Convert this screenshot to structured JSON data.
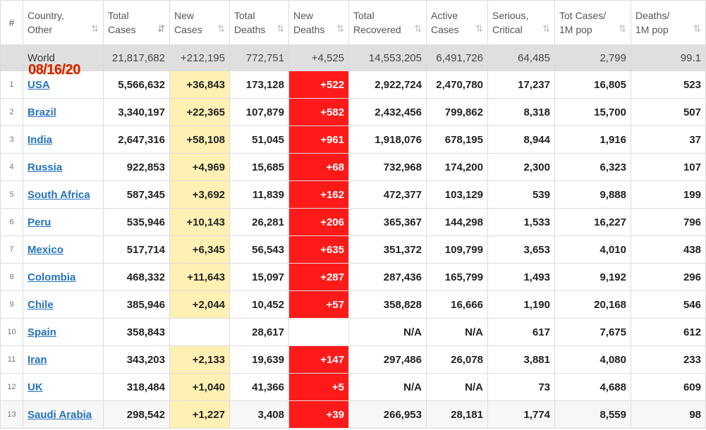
{
  "headers": {
    "index": "#",
    "country": [
      "Country,",
      "Other"
    ],
    "total_cases": [
      "Total",
      "Cases"
    ],
    "new_cases": [
      "New",
      "Cases"
    ],
    "total_deaths": [
      "Total",
      "Deaths"
    ],
    "new_deaths": [
      "New",
      "Deaths"
    ],
    "total_recovered": [
      "Total",
      "Recovered"
    ],
    "active_cases": [
      "Active",
      "Cases"
    ],
    "serious_critical": [
      "Serious,",
      "Critical"
    ],
    "cases_per_million": [
      "Tot Cases/",
      "1M pop"
    ],
    "deaths_per_million": [
      "Deaths/",
      "1M pop"
    ]
  },
  "sort_glyph": "⇅",
  "active_sort_glyph": "⇵",
  "date_stamp": "08/16/20",
  "world": {
    "country": "World",
    "total_cases": "21,817,682",
    "new_cases": "+212,195",
    "total_deaths": "772,751",
    "new_deaths": "+4,525",
    "total_recovered": "14,553,205",
    "active_cases": "6,491,726",
    "serious_critical": "64,485",
    "cases_per_million": "2,799",
    "deaths_per_million": "99.1"
  },
  "rows": [
    {
      "index": "1",
      "country": "USA",
      "total_cases": "5,566,632",
      "new_cases": "+36,843",
      "total_deaths": "173,128",
      "new_deaths": "+522",
      "total_recovered": "2,922,724",
      "active_cases": "2,470,780",
      "serious_critical": "17,237",
      "cases_per_million": "16,805",
      "deaths_per_million": "523"
    },
    {
      "index": "2",
      "country": "Brazil",
      "total_cases": "3,340,197",
      "new_cases": "+22,365",
      "total_deaths": "107,879",
      "new_deaths": "+582",
      "total_recovered": "2,432,456",
      "active_cases": "799,862",
      "serious_critical": "8,318",
      "cases_per_million": "15,700",
      "deaths_per_million": "507"
    },
    {
      "index": "3",
      "country": "India",
      "total_cases": "2,647,316",
      "new_cases": "+58,108",
      "total_deaths": "51,045",
      "new_deaths": "+961",
      "total_recovered": "1,918,076",
      "active_cases": "678,195",
      "serious_critical": "8,944",
      "cases_per_million": "1,916",
      "deaths_per_million": "37"
    },
    {
      "index": "4",
      "country": "Russia",
      "total_cases": "922,853",
      "new_cases": "+4,969",
      "total_deaths": "15,685",
      "new_deaths": "+68",
      "total_recovered": "732,968",
      "active_cases": "174,200",
      "serious_critical": "2,300",
      "cases_per_million": "6,323",
      "deaths_per_million": "107"
    },
    {
      "index": "5",
      "country": "South Africa",
      "total_cases": "587,345",
      "new_cases": "+3,692",
      "total_deaths": "11,839",
      "new_deaths": "+162",
      "total_recovered": "472,377",
      "active_cases": "103,129",
      "serious_critical": "539",
      "cases_per_million": "9,888",
      "deaths_per_million": "199"
    },
    {
      "index": "6",
      "country": "Peru",
      "total_cases": "535,946",
      "new_cases": "+10,143",
      "total_deaths": "26,281",
      "new_deaths": "+206",
      "total_recovered": "365,367",
      "active_cases": "144,298",
      "serious_critical": "1,533",
      "cases_per_million": "16,227",
      "deaths_per_million": "796"
    },
    {
      "index": "7",
      "country": "Mexico",
      "total_cases": "517,714",
      "new_cases": "+6,345",
      "total_deaths": "56,543",
      "new_deaths": "+635",
      "total_recovered": "351,372",
      "active_cases": "109,799",
      "serious_critical": "3,653",
      "cases_per_million": "4,010",
      "deaths_per_million": "438"
    },
    {
      "index": "8",
      "country": "Colombia",
      "total_cases": "468,332",
      "new_cases": "+11,643",
      "total_deaths": "15,097",
      "new_deaths": "+287",
      "total_recovered": "287,436",
      "active_cases": "165,799",
      "serious_critical": "1,493",
      "cases_per_million": "9,192",
      "deaths_per_million": "296"
    },
    {
      "index": "9",
      "country": "Chile",
      "total_cases": "385,946",
      "new_cases": "+2,044",
      "total_deaths": "10,452",
      "new_deaths": "+57",
      "total_recovered": "358,828",
      "active_cases": "16,666",
      "serious_critical": "1,190",
      "cases_per_million": "20,168",
      "deaths_per_million": "546"
    },
    {
      "index": "10",
      "country": "Spain",
      "total_cases": "358,843",
      "new_cases": "",
      "total_deaths": "28,617",
      "new_deaths": "",
      "total_recovered": "N/A",
      "active_cases": "N/A",
      "serious_critical": "617",
      "cases_per_million": "7,675",
      "deaths_per_million": "612"
    },
    {
      "index": "11",
      "country": "Iran",
      "total_cases": "343,203",
      "new_cases": "+2,133",
      "total_deaths": "19,639",
      "new_deaths": "+147",
      "total_recovered": "297,486",
      "active_cases": "26,078",
      "serious_critical": "3,881",
      "cases_per_million": "4,080",
      "deaths_per_million": "233"
    },
    {
      "index": "12",
      "country": "UK",
      "total_cases": "318,484",
      "new_cases": "+1,040",
      "total_deaths": "41,366",
      "new_deaths": "+5",
      "total_recovered": "N/A",
      "active_cases": "N/A",
      "serious_critical": "73",
      "cases_per_million": "4,688",
      "deaths_per_million": "609"
    },
    {
      "index": "13",
      "country": "Saudi Arabia",
      "total_cases": "298,542",
      "new_cases": "+1,227",
      "total_deaths": "3,408",
      "new_deaths": "+39",
      "total_recovered": "266,953",
      "active_cases": "28,181",
      "serious_critical": "1,774",
      "cases_per_million": "8,559",
      "deaths_per_million": "98"
    }
  ],
  "colors": {
    "new_cases_bg": "#fff0b3",
    "new_deaths_bg": "#ff1a1a",
    "world_row_bg": "#dfdfdf",
    "link": "#2573bf",
    "date_stamp": "#cc2200"
  }
}
